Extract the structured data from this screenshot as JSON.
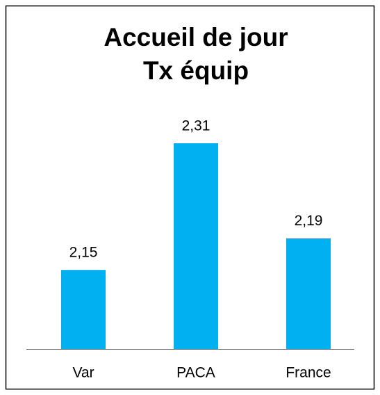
{
  "chart_data": {
    "type": "bar",
    "title": [
      "Accueil de jour",
      "Tx équip"
    ],
    "categories": [
      "Var",
      "PACA",
      "France"
    ],
    "values": [
      2.15,
      2.31,
      2.19
    ],
    "value_labels": [
      "2,15",
      "2,31",
      "2,19"
    ],
    "color": "#00b0f0",
    "ylim": [
      2.05,
      2.31
    ]
  }
}
